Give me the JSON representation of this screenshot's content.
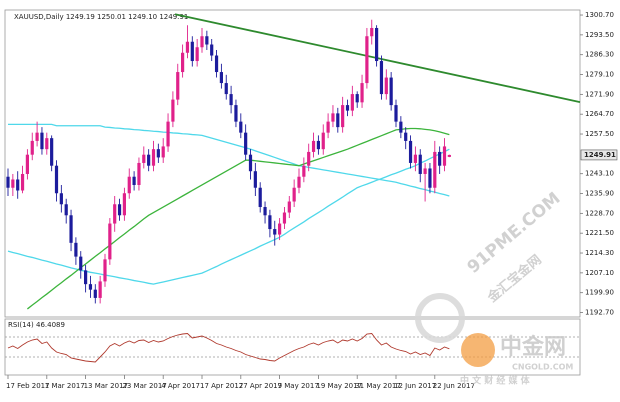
{
  "chart_data": {
    "type": "candlestick",
    "title": "XAUUSD,Daily 1249.19 1250.01 1249.10 1249.91",
    "categories": [
      "17 Feb 2017",
      null,
      null,
      null,
      null,
      null,
      null,
      null,
      "1 Mar 2017",
      null,
      null,
      null,
      null,
      null,
      null,
      null,
      "13 Mar 2017",
      null,
      null,
      null,
      null,
      null,
      null,
      null,
      "23 Mar 2017",
      null,
      null,
      null,
      null,
      null,
      null,
      null,
      "4 Apr 2017",
      null,
      null,
      null,
      null,
      null,
      null,
      null,
      "17 Apr 2017",
      null,
      null,
      null,
      null,
      null,
      null,
      null,
      "27 Apr 2017",
      null,
      null,
      null,
      null,
      null,
      null,
      null,
      "9 May 2017",
      null,
      null,
      null,
      null,
      null,
      null,
      null,
      "19 May 2017",
      null,
      null,
      null,
      null,
      null,
      null,
      null,
      "31 May 2017",
      null,
      null,
      null,
      null,
      null,
      null,
      null,
      "12 Jun 2017",
      null,
      null,
      null,
      null,
      null,
      null,
      null,
      "22 Jun 2017",
      null,
      null,
      null
    ],
    "open": [
      1242,
      1238,
      1241,
      1237,
      1243,
      1250,
      1255,
      1258,
      1252,
      1256,
      1246,
      1236,
      1232,
      1228,
      1218,
      1213,
      1208,
      1203,
      1201,
      1198,
      1204,
      1212,
      1225,
      1232,
      1228,
      1236,
      1242,
      1239,
      1247,
      1250,
      1246,
      1252,
      1249,
      1253,
      1262,
      1270,
      1280,
      1287,
      1291,
      1284,
      1289,
      1293,
      1290,
      1286,
      1280,
      1276,
      1272,
      1268,
      1262,
      1258,
      1250,
      1244,
      1238,
      1231,
      1228,
      1223,
      1221,
      1225,
      1229,
      1233,
      1238,
      1242,
      1246,
      1251,
      1255,
      1252,
      1258,
      1262,
      1265,
      1260,
      1268,
      1266,
      1272,
      1269,
      1276,
      1293,
      1296,
      1284,
      1272,
      1278,
      1268,
      1262,
      1258,
      1255,
      1247,
      1250,
      1243,
      1245,
      1238,
      1251,
      1246,
      1249.19
    ],
    "high": [
      1245,
      1243,
      1244,
      1246,
      1252,
      1258,
      1262,
      1260,
      1258,
      1257,
      1248,
      1239,
      1234,
      1230,
      1220,
      1215,
      1210,
      1206,
      1203,
      1206,
      1214,
      1227,
      1235,
      1234,
      1238,
      1245,
      1244,
      1249,
      1253,
      1252,
      1255,
      1254,
      1256,
      1265,
      1273,
      1283,
      1290,
      1297,
      1293,
      1292,
      1296,
      1295,
      1292,
      1288,
      1283,
      1279,
      1275,
      1270,
      1265,
      1261,
      1252,
      1247,
      1240,
      1233,
      1230,
      1226,
      1227,
      1231,
      1235,
      1241,
      1245,
      1249,
      1254,
      1258,
      1257,
      1261,
      1265,
      1268,
      1267,
      1271,
      1270,
      1275,
      1273,
      1279,
      1296,
      1299,
      1297,
      1286,
      1281,
      1280,
      1270,
      1264,
      1260,
      1257,
      1253,
      1252,
      1247,
      1247,
      1255,
      1253,
      1256,
      1250.01
    ],
    "low": [
      1235,
      1235,
      1234,
      1236,
      1241,
      1248,
      1253,
      1250,
      1250,
      1244,
      1233,
      1229,
      1225,
      1215,
      1210,
      1205,
      1200,
      1198,
      1196,
      1196,
      1202,
      1210,
      1222,
      1226,
      1226,
      1234,
      1237,
      1237,
      1245,
      1244,
      1244,
      1247,
      1247,
      1251,
      1260,
      1268,
      1278,
      1285,
      1282,
      1282,
      1287,
      1288,
      1284,
      1278,
      1274,
      1270,
      1265,
      1260,
      1256,
      1248,
      1241,
      1235,
      1229,
      1225,
      1220,
      1217,
      1219,
      1223,
      1227,
      1231,
      1236,
      1240,
      1244,
      1249,
      1250,
      1250,
      1256,
      1260,
      1258,
      1258,
      1264,
      1264,
      1267,
      1267,
      1274,
      1290,
      1282,
      1270,
      1270,
      1266,
      1260,
      1256,
      1252,
      1245,
      1244,
      1240,
      1233,
      1236,
      1236,
      1243,
      1244,
      1249.1
    ],
    "close": [
      1238,
      1241,
      1237,
      1243,
      1250,
      1255,
      1258,
      1252,
      1256,
      1246,
      1236,
      1232,
      1228,
      1218,
      1213,
      1208,
      1203,
      1201,
      1198,
      1204,
      1212,
      1225,
      1232,
      1228,
      1236,
      1242,
      1239,
      1247,
      1250,
      1246,
      1252,
      1249,
      1253,
      1262,
      1270,
      1280,
      1287,
      1291,
      1284,
      1289,
      1293,
      1290,
      1286,
      1280,
      1276,
      1272,
      1268,
      1262,
      1258,
      1250,
      1244,
      1238,
      1231,
      1228,
      1223,
      1221,
      1225,
      1229,
      1233,
      1238,
      1242,
      1246,
      1251,
      1255,
      1252,
      1258,
      1262,
      1265,
      1260,
      1268,
      1266,
      1272,
      1269,
      1276,
      1293,
      1296,
      1284,
      1272,
      1278,
      1268,
      1262,
      1258,
      1255,
      1247,
      1250,
      1243,
      1245,
      1238,
      1251,
      1246,
      1253,
      1249.91
    ],
    "up_color": "#e0218a",
    "down_color": "#1c1c9c",
    "moving_averages": [
      {
        "color": "#4fd8ea",
        "values": [
          1261,
          1261,
          1261,
          1261,
          1261,
          1261,
          1261,
          1261,
          1261,
          1261,
          1260.5,
          1260.5,
          1260.5,
          1260.5,
          1260.5,
          1260.5,
          1260.5,
          1260.5,
          1260.5,
          1260.5,
          1260,
          1259.9,
          1259.7,
          1259.6,
          1259.4,
          1259.3,
          1259.1,
          1259,
          1258.8,
          1258.7,
          1258.5,
          1258.4,
          1258.2,
          1258.1,
          1257.9,
          1257.8,
          1257.6,
          1257.5,
          1257.3,
          1257.2,
          1257,
          1256.5,
          1256,
          1255.5,
          1255,
          1254.5,
          1254,
          1253.5,
          1253,
          1252.5,
          1252,
          1251.4,
          1250.8,
          1250.2,
          1249.6,
          1249,
          1248.4,
          1247.8,
          1247.2,
          1246.6,
          1246,
          1245.7,
          1245.4,
          1245.1,
          1244.8,
          1244.5,
          1244.2,
          1243.9,
          1243.6,
          1243.3,
          1243,
          1242.7,
          1242.4,
          1242.1,
          1241.8,
          1241.5,
          1241.2,
          1240.9,
          1240.6,
          1240.3,
          1240,
          1239.5,
          1239.1,
          1238.6,
          1238.2,
          1237.7,
          1237.3,
          1236.8,
          1236.4,
          1235.9,
          1235.5,
          1235
        ]
      },
      {
        "color": "#4fd8ea",
        "values": [
          1215,
          1214.5,
          1214.1,
          1213.6,
          1213.1,
          1212.7,
          1212.2,
          1211.7,
          1211.3,
          1210.8,
          1210.3,
          1209.9,
          1209.4,
          1208.9,
          1208.5,
          1208,
          1207.7,
          1207.3,
          1207,
          1206.7,
          1206.3,
          1206,
          1205.7,
          1205.3,
          1205,
          1204.7,
          1204.3,
          1204,
          1203.7,
          1203.3,
          1203,
          1203.4,
          1203.8,
          1204.2,
          1204.6,
          1205,
          1205.4,
          1205.8,
          1206.2,
          1206.6,
          1207,
          1207.8,
          1208.6,
          1209.4,
          1210.3,
          1211.1,
          1211.9,
          1212.7,
          1213.5,
          1214.3,
          1215.1,
          1215.9,
          1216.8,
          1217.6,
          1218.4,
          1219.2,
          1220,
          1221.1,
          1222.3,
          1223.4,
          1224.5,
          1225.6,
          1226.8,
          1227.9,
          1229,
          1230.1,
          1231.3,
          1232.4,
          1233.5,
          1234.6,
          1235.8,
          1236.9,
          1238,
          1238.7,
          1239.3,
          1240,
          1240.7,
          1241.3,
          1242,
          1242.7,
          1243.3,
          1244,
          1244.7,
          1245.3,
          1246,
          1246.9,
          1247.7,
          1248.6,
          1249.4,
          1250.3,
          1251.1,
          1252
        ]
      },
      {
        "color": "#3cb43c",
        "values": [
          null,
          null,
          null,
          null,
          1194,
          1195.4,
          1196.7,
          1198.1,
          1199.4,
          1200.8,
          1202.2,
          1203.5,
          1204.9,
          1206.2,
          1207.6,
          1209,
          1210.3,
          1211.7,
          1213.1,
          1214.4,
          1215.8,
          1217.1,
          1218.5,
          1219.9,
          1221.2,
          1222.6,
          1223.9,
          1225.3,
          1226.7,
          1228,
          1229,
          1230,
          1231,
          1232,
          1233,
          1234,
          1235,
          1236,
          1237,
          1238,
          1239,
          1240,
          1241,
          1242,
          1243,
          1244,
          1245,
          1246,
          1247,
          1248,
          1248,
          1247.8,
          1247.6,
          1247.4,
          1247.2,
          1247,
          1246.8,
          1246.6,
          1246.4,
          1246.2,
          1246,
          1246.6,
          1247.2,
          1247.8,
          1248.4,
          1249,
          1249.6,
          1250.2,
          1250.8,
          1251.4,
          1252,
          1252.7,
          1253.4,
          1254.1,
          1254.8,
          1255.5,
          1256.2,
          1256.9,
          1257.6,
          1258.3,
          1259,
          1259.2,
          1259.4,
          1259.5,
          1259.5,
          1259.4,
          1259.2,
          1259,
          1258.7,
          1258.3,
          1257.8,
          1257.3
        ]
      }
    ],
    "trendline": {
      "color": "#2e8a2e",
      "values": [
        1301,
        1269.1
      ]
    },
    "ylim": [
      1191.8,
      1301.8
    ],
    "yticks": [
      {
        "value": 1300.7,
        "label": "1300.70"
      },
      {
        "value": 1293.5,
        "label": "1293.50"
      },
      {
        "value": 1286.3,
        "label": "1286.30"
      },
      {
        "value": 1279.1,
        "label": "1279.10"
      },
      {
        "value": 1271.9,
        "label": "1271.90"
      },
      {
        "value": 1264.7,
        "label": "1264.70"
      },
      {
        "value": 1257.5,
        "label": "1257.50"
      },
      {
        "value": 1243.1,
        "label": "1243.10"
      },
      {
        "value": 1235.9,
        "label": "1235.90"
      },
      {
        "value": 1228.7,
        "label": "1228.70"
      },
      {
        "value": 1221.5,
        "label": "1221.50"
      },
      {
        "value": 1214.3,
        "label": "1214.30"
      },
      {
        "value": 1207.1,
        "label": "1207.10"
      },
      {
        "value": 1199.9,
        "label": "1199.90"
      },
      {
        "value": 1192.7,
        "label": "1192.70"
      }
    ],
    "rsi": {
      "label": "RSI(14)",
      "color": "#b03a2e",
      "ylim": [
        0,
        100
      ],
      "levels": [
        70,
        30
      ],
      "values": [
        48,
        52,
        47,
        54,
        60,
        64,
        66,
        57,
        60,
        48,
        40,
        37,
        35,
        28,
        26,
        24,
        22,
        21,
        20,
        30,
        40,
        52,
        57,
        52,
        58,
        62,
        58,
        63,
        64,
        59,
        63,
        60,
        62,
        67,
        71,
        74,
        76,
        77,
        68,
        70,
        72,
        68,
        63,
        57,
        54,
        50,
        47,
        43,
        40,
        35,
        32,
        29,
        26,
        25,
        23,
        22,
        28,
        33,
        38,
        43,
        47,
        50,
        55,
        58,
        54,
        59,
        62,
        64,
        58,
        64,
        62,
        66,
        62,
        67,
        76,
        77,
        64,
        54,
        58,
        50,
        46,
        43,
        41,
        36,
        40,
        35,
        38,
        33,
        48,
        44,
        50,
        46.4089
      ]
    }
  },
  "watermarks": [
    "91PME.COM",
    "金汇宝金网",
    "中金网",
    "CNGOLD.COM",
    "中 文 财 经 媒 体"
  ]
}
